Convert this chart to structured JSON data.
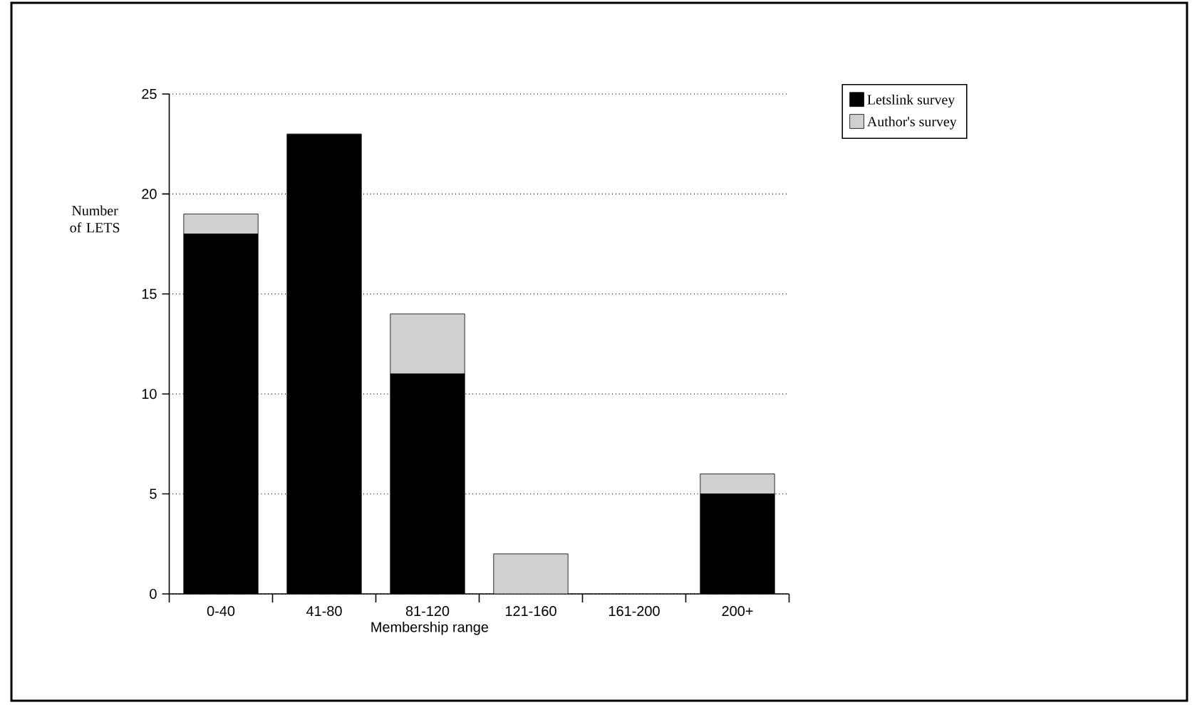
{
  "chart_data": {
    "type": "bar",
    "stacked": true,
    "categories": [
      "0-40",
      "41-80",
      "81-120",
      "121-160",
      "161-200",
      "200+"
    ],
    "series": [
      {
        "name": "Letslink survey",
        "color": "#000000",
        "values": [
          18,
          23,
          11,
          0,
          0,
          5
        ]
      },
      {
        "name": "Author's survey",
        "color": "#d0d0d0",
        "values": [
          1,
          0,
          3,
          2,
          0,
          1
        ]
      }
    ],
    "xlabel": "Membership range",
    "ylabel": "Number of LETS",
    "ylim": [
      0,
      25
    ],
    "yticks": [
      0,
      5,
      10,
      15,
      20,
      25
    ],
    "grid": "y",
    "legend": "top right"
  }
}
